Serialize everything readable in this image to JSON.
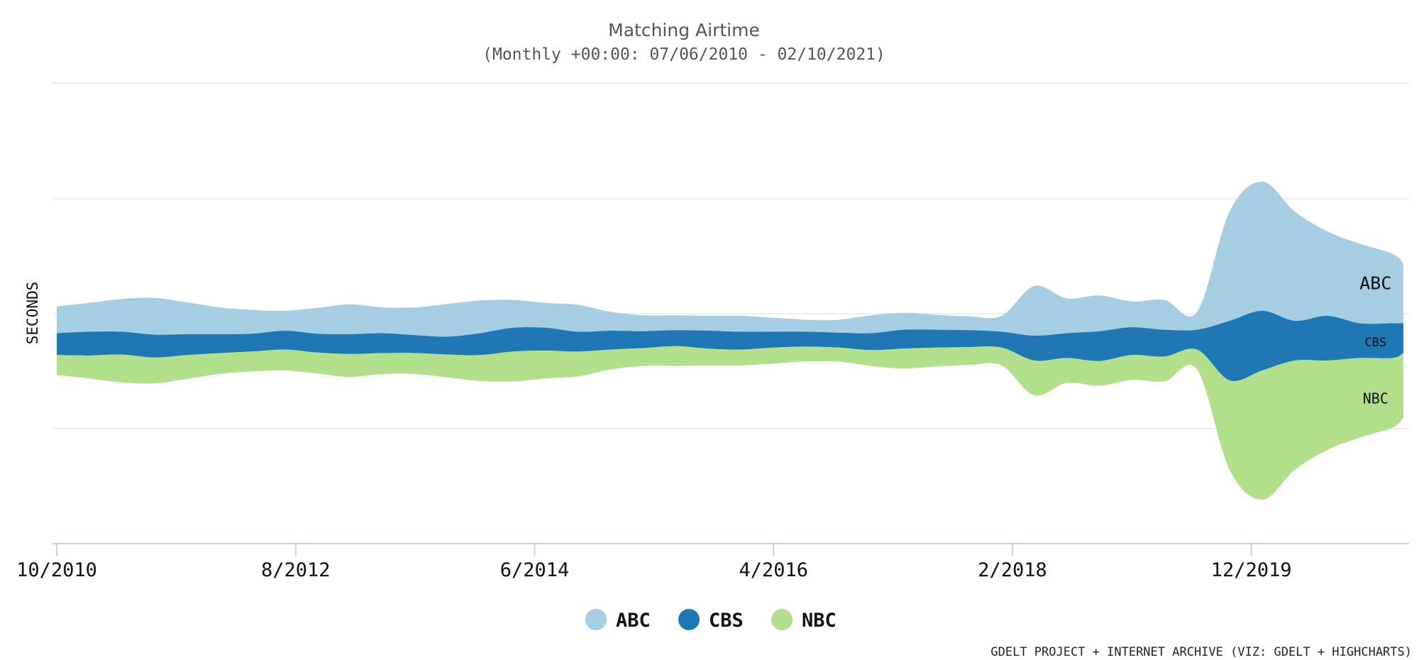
{
  "chart_data": {
    "type": "area",
    "stacking": "streamgraph",
    "title": "Matching Airtime",
    "subtitle": "(Monthly +00:00: 07/06/2010 - 02/10/2021)",
    "ylabel": "SECONDS",
    "xlabel": "",
    "x_start": "2010-10",
    "x_end": "2021-02",
    "x_ticks": [
      "10/2010",
      "8/2012",
      "6/2014",
      "4/2016",
      "2/2018",
      "12/2019"
    ],
    "grid": true,
    "legend_position": "bottom-center",
    "credits": "GDELT PROJECT + INTERNET ARCHIVE (VIZ: GDELT + HIGHCHARTS)",
    "x": [
      "2010-10",
      "2011-01",
      "2011-04",
      "2011-07",
      "2011-10",
      "2012-01",
      "2012-04",
      "2012-07",
      "2012-10",
      "2013-01",
      "2013-04",
      "2013-07",
      "2013-10",
      "2014-01",
      "2014-04",
      "2014-07",
      "2014-10",
      "2015-01",
      "2015-04",
      "2015-07",
      "2015-10",
      "2016-01",
      "2016-04",
      "2016-07",
      "2016-10",
      "2017-01",
      "2017-04",
      "2017-07",
      "2017-10",
      "2018-01",
      "2018-04",
      "2018-07",
      "2018-10",
      "2019-01",
      "2019-04",
      "2019-07",
      "2019-10",
      "2020-01",
      "2020-04",
      "2020-07",
      "2020-10",
      "2021-01",
      "2021-02"
    ],
    "series": [
      {
        "name": "ABC",
        "color": "#a6cee3",
        "label": "ABC",
        "values": [
          2.7,
          2.9,
          3.3,
          3.7,
          3.2,
          2.7,
          2.4,
          2.0,
          2.6,
          3.0,
          2.6,
          2.8,
          3.3,
          3.3,
          2.8,
          2.5,
          2.7,
          1.9,
          1.6,
          1.5,
          1.5,
          1.6,
          1.4,
          1.2,
          1.3,
          1.8,
          1.7,
          1.5,
          1.4,
          1.6,
          5.0,
          3.5,
          3.6,
          2.6,
          3.0,
          1.8,
          11.0,
          13.0,
          11.0,
          8.5,
          8.0,
          7.0,
          6.0
        ]
      },
      {
        "name": "CBS",
        "color": "#1f78b4",
        "label": "CBS",
        "values": [
          2.2,
          2.4,
          2.3,
          2.3,
          2.1,
          1.9,
          1.8,
          1.9,
          1.9,
          2.0,
          2.0,
          1.8,
          1.8,
          2.2,
          2.4,
          2.3,
          2.0,
          1.9,
          1.7,
          1.6,
          1.8,
          1.8,
          1.6,
          1.5,
          1.5,
          1.7,
          1.9,
          1.8,
          1.7,
          1.6,
          2.5,
          2.5,
          3.0,
          2.8,
          2.7,
          2.0,
          6.0,
          6.0,
          4.0,
          4.5,
          3.5,
          3.5,
          3.0
        ]
      },
      {
        "name": "NBC",
        "color": "#b2df8a",
        "label": "NBC",
        "values": [
          2.0,
          2.3,
          2.8,
          2.6,
          2.4,
          2.1,
          2.0,
          2.1,
          2.1,
          2.3,
          2.1,
          2.1,
          2.3,
          2.6,
          3.0,
          2.8,
          2.5,
          2.0,
          1.8,
          2.0,
          1.7,
          1.6,
          1.6,
          1.5,
          1.4,
          1.6,
          2.0,
          1.9,
          1.8,
          1.8,
          3.5,
          2.5,
          2.5,
          2.5,
          2.5,
          2.0,
          9.0,
          13.0,
          11.0,
          9.0,
          8.0,
          7.0,
          6.5
        ]
      }
    ]
  }
}
